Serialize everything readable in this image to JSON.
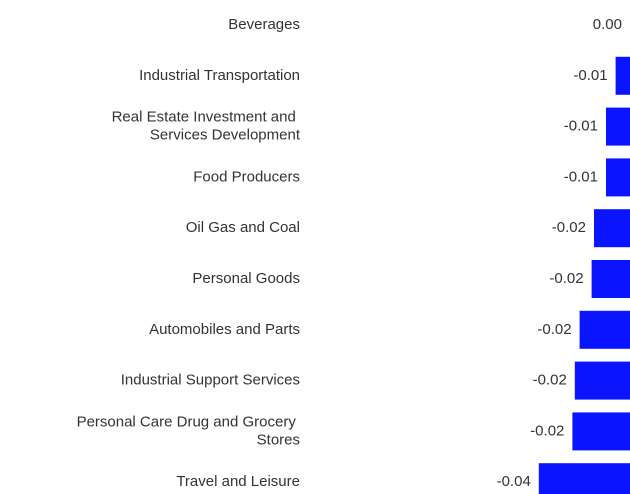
{
  "chart_data": {
    "type": "hbar",
    "categories": [
      "Beverages",
      "Industrial Transportation",
      "Real Estate Investment and Services Development",
      "Food Producers",
      "Oil Gas and Coal",
      "Personal Goods",
      "Automobiles and Parts",
      "Industrial Support Services",
      "Personal Care Drug and Grocery Stores",
      "Travel and Leisure"
    ],
    "values": [
      0,
      -0.006,
      -0.01,
      -0.01,
      -0.015,
      -0.016,
      -0.021,
      -0.023,
      -0.024,
      -0.038
    ],
    "value_labels": [
      "0.00",
      "-0.01",
      "-0.01",
      "-0.01",
      "-0.02",
      "-0.02",
      "-0.02",
      "-0.02",
      "-0.02",
      "-0.04"
    ],
    "color": "#0a14ff",
    "xlim": [
      -0.04,
      0
    ]
  }
}
